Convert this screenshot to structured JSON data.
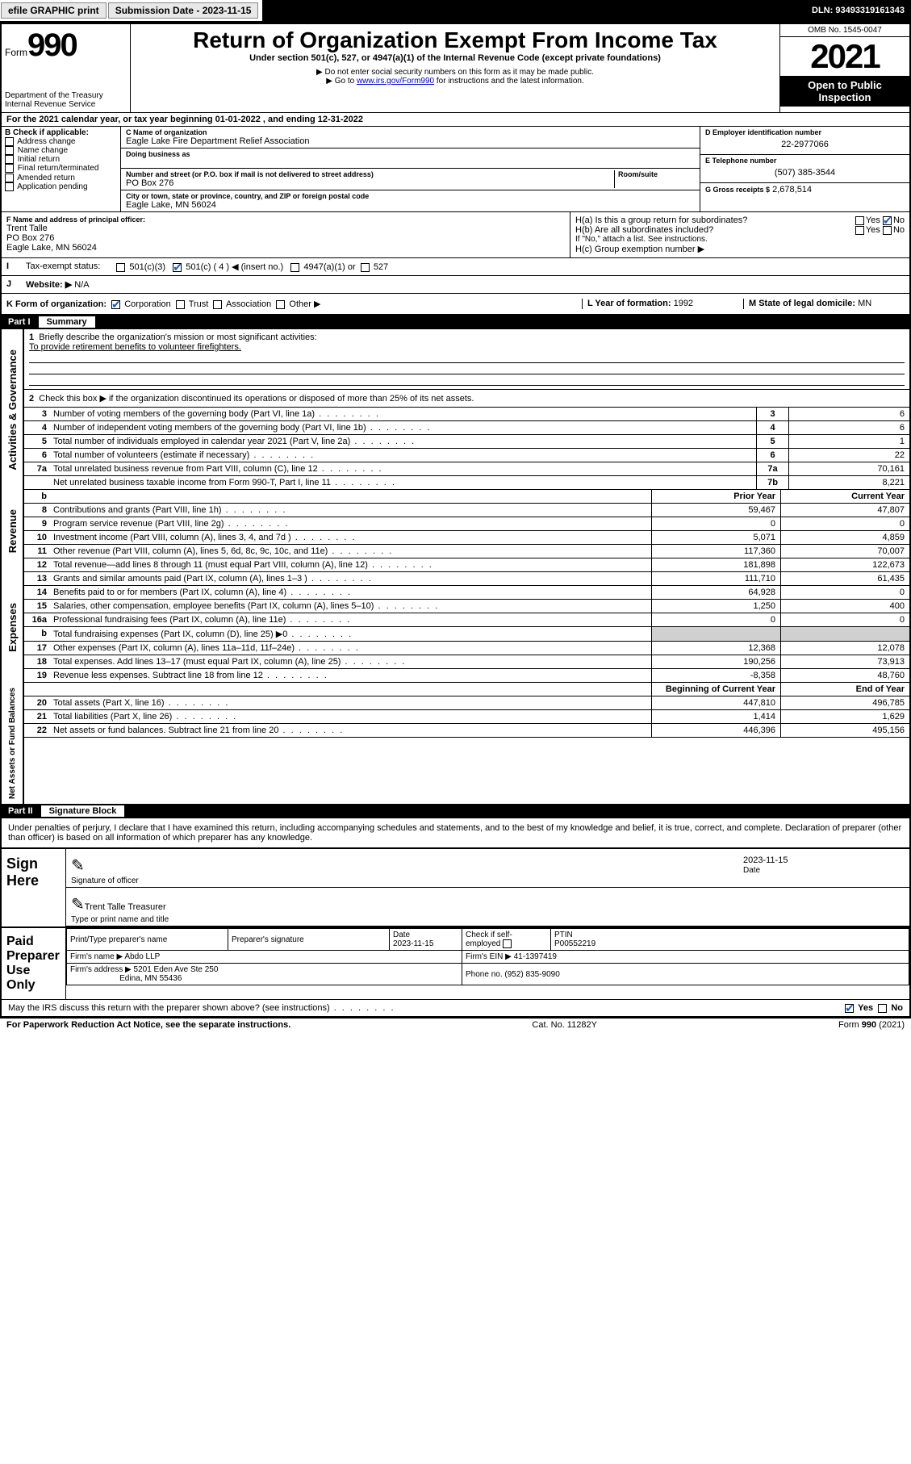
{
  "topbar": {
    "efile": "efile GRAPHIC print",
    "submission_label": "Submission Date - 2023-11-15",
    "dln_label": "DLN: 93493319161343"
  },
  "header": {
    "form_word": "Form",
    "form_num": "990",
    "title": "Return of Organization Exempt From Income Tax",
    "subtitle": "Under section 501(c), 527, or 4947(a)(1) of the Internal Revenue Code (except private foundations)",
    "note1": "▶ Do not enter social security numbers on this form as it may be made public.",
    "note2_pre": "▶ Go to ",
    "note2_link": "www.irs.gov/Form990",
    "note2_post": " for instructions and the latest information.",
    "dept": "Department of the Treasury",
    "irs": "Internal Revenue Service",
    "omb": "OMB No. 1545-0047",
    "year": "2021",
    "open": "Open to Public Inspection"
  },
  "line_a": "For the 2021 calendar year, or tax year beginning 01-01-2022   , and ending 12-31-2022",
  "box_b": {
    "title": "B Check if applicable:",
    "opts": [
      "Address change",
      "Name change",
      "Initial return",
      "Final return/terminated",
      "Amended return",
      "Application pending"
    ]
  },
  "box_c": {
    "name_label": "C Name of organization",
    "name": "Eagle Lake Fire Department Relief Association",
    "dba_label": "Doing business as",
    "street_label": "Number and street (or P.O. box if mail is not delivered to street address)",
    "room_label": "Room/suite",
    "street": "PO Box 276",
    "city_label": "City or town, state or province, country, and ZIP or foreign postal code",
    "city": "Eagle Lake, MN  56024"
  },
  "box_d": {
    "label": "D Employer identification number",
    "value": "22-2977066"
  },
  "box_e": {
    "label": "E Telephone number",
    "value": "(507) 385-3544"
  },
  "box_g": {
    "label": "G Gross receipts $",
    "value": "2,678,514"
  },
  "box_f": {
    "label": "F Name and address of principal officer:",
    "name": "Trent Talle",
    "street": "PO Box 276",
    "city": "Eagle Lake, MN  56024"
  },
  "box_h": {
    "a": "H(a)  Is this a group return for subordinates?",
    "b": "H(b)  Are all subordinates included?",
    "attach": "If \"No,\" attach a list. See instructions.",
    "c": "H(c)  Group exemption number ▶",
    "yes": "Yes",
    "no": "No"
  },
  "box_i": {
    "label": "Tax-exempt status:",
    "o1": "501(c)(3)",
    "o2": "501(c) ( 4 ) ◀ (insert no.)",
    "o3": "4947(a)(1) or",
    "o4": "527"
  },
  "box_j": {
    "label": "Website: ▶",
    "value": "N/A"
  },
  "box_k": {
    "label": "K Form of organization:",
    "o1": "Corporation",
    "o2": "Trust",
    "o3": "Association",
    "o4": "Other ▶"
  },
  "box_l": {
    "label": "L Year of formation:",
    "value": "1992"
  },
  "box_m": {
    "label": "M State of legal domicile:",
    "value": "MN"
  },
  "part1": {
    "label": "Part I",
    "title": "Summary"
  },
  "summary": {
    "q1": "Briefly describe the organization's mission or most significant activities:",
    "mission": "To provide retirement benefits to volunteer firefighters.",
    "q2": "Check this box ▶      if the organization discontinued its operations or disposed of more than 25% of its net assets.",
    "rows_single": [
      {
        "n": "3",
        "d": "Number of voting members of the governing body (Part VI, line 1a)",
        "box": "3",
        "v": "6"
      },
      {
        "n": "4",
        "d": "Number of independent voting members of the governing body (Part VI, line 1b)",
        "box": "4",
        "v": "6"
      },
      {
        "n": "5",
        "d": "Total number of individuals employed in calendar year 2021 (Part V, line 2a)",
        "box": "5",
        "v": "1"
      },
      {
        "n": "6",
        "d": "Total number of volunteers (estimate if necessary)",
        "box": "6",
        "v": "22"
      },
      {
        "n": "7a",
        "d": "Total unrelated business revenue from Part VIII, column (C), line 12",
        "box": "7a",
        "v": "70,161"
      },
      {
        "n": "",
        "d": "Net unrelated business taxable income from Form 990-T, Part I, line 11",
        "box": "7b",
        "v": "8,221"
      }
    ],
    "col_prior": "Prior Year",
    "col_current": "Current Year",
    "revenue": [
      {
        "n": "8",
        "d": "Contributions and grants (Part VIII, line 1h)",
        "p": "59,467",
        "c": "47,807"
      },
      {
        "n": "9",
        "d": "Program service revenue (Part VIII, line 2g)",
        "p": "0",
        "c": "0"
      },
      {
        "n": "10",
        "d": "Investment income (Part VIII, column (A), lines 3, 4, and 7d )",
        "p": "5,071",
        "c": "4,859"
      },
      {
        "n": "11",
        "d": "Other revenue (Part VIII, column (A), lines 5, 6d, 8c, 9c, 10c, and 11e)",
        "p": "117,360",
        "c": "70,007"
      },
      {
        "n": "12",
        "d": "Total revenue—add lines 8 through 11 (must equal Part VIII, column (A), line 12)",
        "p": "181,898",
        "c": "122,673"
      }
    ],
    "expenses": [
      {
        "n": "13",
        "d": "Grants and similar amounts paid (Part IX, column (A), lines 1–3 )",
        "p": "111,710",
        "c": "61,435"
      },
      {
        "n": "14",
        "d": "Benefits paid to or for members (Part IX, column (A), line 4)",
        "p": "64,928",
        "c": "0"
      },
      {
        "n": "15",
        "d": "Salaries, other compensation, employee benefits (Part IX, column (A), lines 5–10)",
        "p": "1,250",
        "c": "400"
      },
      {
        "n": "16a",
        "d": "Professional fundraising fees (Part IX, column (A), line 11e)",
        "p": "0",
        "c": "0"
      },
      {
        "n": "b",
        "d": "Total fundraising expenses (Part IX, column (D), line 25) ▶0",
        "p": "",
        "c": "",
        "gray": true
      },
      {
        "n": "17",
        "d": "Other expenses (Part IX, column (A), lines 11a–11d, 11f–24e)",
        "p": "12,368",
        "c": "12,078"
      },
      {
        "n": "18",
        "d": "Total expenses. Add lines 13–17 (must equal Part IX, column (A), line 25)",
        "p": "190,256",
        "c": "73,913"
      },
      {
        "n": "19",
        "d": "Revenue less expenses. Subtract line 18 from line 12",
        "p": "-8,358",
        "c": "48,760"
      }
    ],
    "col_begin": "Beginning of Current Year",
    "col_end": "End of Year",
    "netassets": [
      {
        "n": "20",
        "d": "Total assets (Part X, line 16)",
        "p": "447,810",
        "c": "496,785"
      },
      {
        "n": "21",
        "d": "Total liabilities (Part X, line 26)",
        "p": "1,414",
        "c": "1,629"
      },
      {
        "n": "22",
        "d": "Net assets or fund balances. Subtract line 21 from line 20",
        "p": "446,396",
        "c": "495,156"
      }
    ],
    "side_labels": {
      "ag": "Activities & Governance",
      "rev": "Revenue",
      "exp": "Expenses",
      "na": "Net Assets or Fund Balances"
    }
  },
  "part2": {
    "label": "Part II",
    "title": "Signature Block"
  },
  "sig": {
    "declare": "Under penalties of perjury, I declare that I have examined this return, including accompanying schedules and statements, and to the best of my knowledge and belief, it is true, correct, and complete. Declaration of preparer (other than officer) is based on all information of which preparer has any knowledge.",
    "sign_here": "Sign Here",
    "sig_officer": "Signature of officer",
    "date_label": "Date",
    "date": "2023-11-15",
    "officer_name": "Trent Talle Treasurer",
    "type_name": "Type or print name and title",
    "paid": "Paid Preparer Use Only",
    "prep_name_label": "Print/Type preparer's name",
    "prep_sig_label": "Preparer's signature",
    "prep_date": "2023-11-15",
    "check_if": "Check       if self-employed",
    "ptin_label": "PTIN",
    "ptin": "P00552219",
    "firm_name_label": "Firm's name   ▶",
    "firm_name": "Abdo LLP",
    "firm_ein_label": "Firm's EIN ▶",
    "firm_ein": "41-1397419",
    "firm_addr_label": "Firm's address ▶",
    "firm_addr": "5201 Eden Ave Ste 250",
    "firm_city": "Edina, MN  55436",
    "phone_label": "Phone no.",
    "phone": "(952) 835-9090",
    "discuss": "May the IRS discuss this return with the preparer shown above? (see instructions)"
  },
  "footer": {
    "paperwork": "For Paperwork Reduction Act Notice, see the separate instructions.",
    "cat": "Cat. No. 11282Y",
    "form": "Form 990 (2021)"
  },
  "colors": {
    "black": "#000000",
    "blue": "#1a5fb4",
    "link": "#0000cc",
    "gray": "#d0d0d0"
  }
}
